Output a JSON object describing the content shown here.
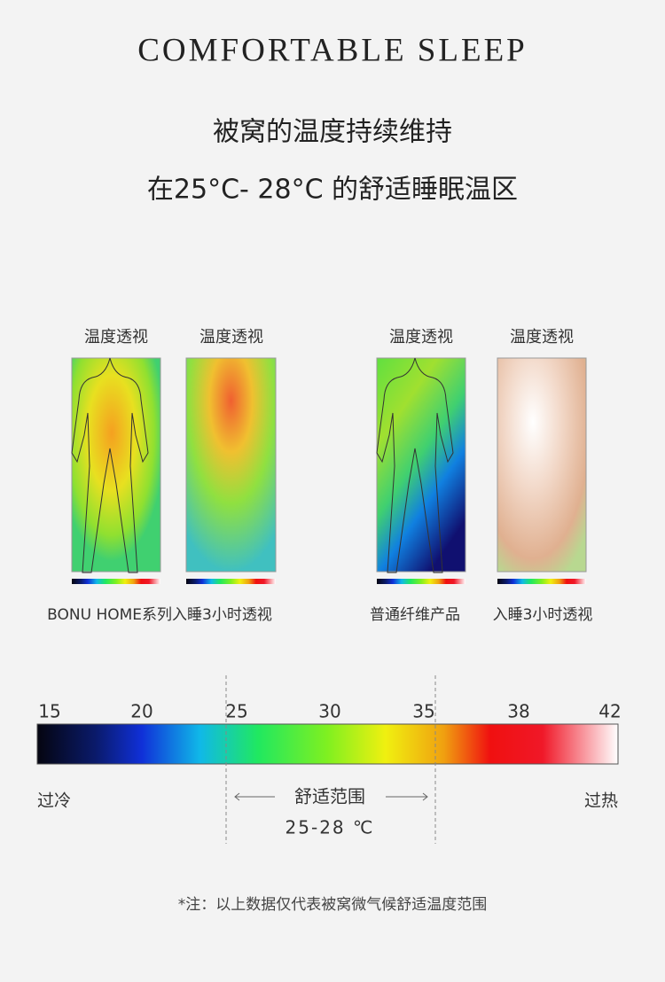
{
  "header": {
    "title": "COMFORTABLE SLEEP",
    "line1": "被窝的温度持续维持",
    "line2": "在25°C- 28°C 的舒适睡眠温区"
  },
  "panels": [
    {
      "label": "温度透视"
    },
    {
      "label": "温度透视"
    },
    {
      "label": "温度透视"
    },
    {
      "label": "温度透视"
    }
  ],
  "captions": [
    "BONU HOME系列入睡3小时透视",
    "普通纤维产品",
    "入睡3小时透视"
  ],
  "scale": {
    "ticks": [
      15,
      20,
      25,
      30,
      35,
      38,
      42
    ],
    "cold": "过冷",
    "hot": "过热",
    "zone": "舒适范围",
    "zone_range": "25-28 ℃"
  },
  "note": "*注：以上数据仅代表被窝微气候舒适温度范围"
}
